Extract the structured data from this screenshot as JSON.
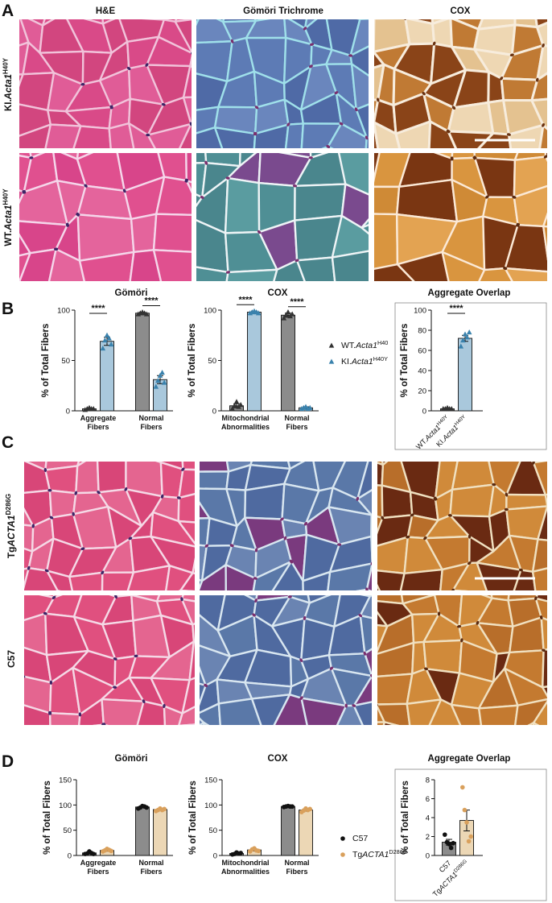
{
  "panel_labels": [
    "A",
    "B",
    "C",
    "D"
  ],
  "column_headers": [
    "H&E",
    "Gömöri Trichrome",
    "COX"
  ],
  "row_labels_a": [
    [
      "KI.",
      "Acta1",
      "H40Y"
    ],
    [
      "WT.",
      "Acta1",
      "H40Y"
    ]
  ],
  "row_labels_c": [
    [
      "Tg",
      "ACTA1",
      "D286G"
    ],
    [
      "C57"
    ]
  ],
  "chart_data": [
    {
      "type": "grouped_bar",
      "title": "Gömöri",
      "ylabel": "% of Total Fibers",
      "categories": [
        [
          "Aggregate",
          "Fibers"
        ],
        [
          "Normal",
          "Fibers"
        ]
      ],
      "ylim": [
        0,
        100
      ],
      "yticks": [
        0,
        50,
        100
      ],
      "marker": "triangle",
      "annotations": [
        {
          "text": "****",
          "category": 0
        },
        {
          "text": "****",
          "category": 1
        }
      ],
      "series": [
        {
          "color": "#8c8c8c",
          "point_color": "#333333",
          "values": [
            2,
            97
          ],
          "errors": [
            0.5,
            1
          ],
          "points": [
            [
              1,
              2,
              3,
              2,
              2
            ],
            [
              96,
              97,
              98,
              97,
              96
            ]
          ]
        },
        {
          "color": "#a9c8dc",
          "point_color": "#3a82ad",
          "values": [
            69,
            31
          ],
          "errors": [
            4,
            4
          ],
          "points": [
            [
              62,
              70,
              75,
              72,
              66
            ],
            [
              24,
              30,
              35,
              38,
              28
            ]
          ]
        }
      ]
    },
    {
      "type": "grouped_bar",
      "title": "COX",
      "ylabel": "% of Total Fibers",
      "categories": [
        [
          "Mitochondrial",
          "Abnormalities"
        ],
        [
          "Normal",
          "Fibers"
        ]
      ],
      "ylim": [
        0,
        100
      ],
      "yticks": [
        0,
        50,
        100
      ],
      "marker": "triangle",
      "legend": true,
      "annotations": [
        {
          "text": "****",
          "category": 0
        },
        {
          "text": "****",
          "category": 1
        }
      ],
      "series": [
        {
          "name": [
            "WT.",
            "Acta1",
            "H40"
          ],
          "color": "#8c8c8c",
          "point_color": "#333333",
          "values": [
            5,
            95
          ],
          "errors": [
            2,
            2
          ],
          "points": [
            [
              2,
              5,
              9,
              4,
              6
            ],
            [
              92,
              95,
              98,
              94,
              96
            ]
          ]
        },
        {
          "name": [
            "KI.",
            "Acta1",
            "H40Y"
          ],
          "color": "#a9c8dc",
          "point_color": "#3a82ad",
          "values": [
            98,
            3
          ],
          "errors": [
            1,
            1
          ],
          "points": [
            [
              97,
              98,
              99,
              98,
              97
            ],
            [
              2,
              3,
              4,
              2,
              3
            ]
          ]
        }
      ]
    },
    {
      "type": "bar",
      "title": "Aggregate Overlap",
      "ylabel": "% of Total Fibers",
      "categories": [
        [
          "WT.",
          "Acta1",
          "H40Y"
        ],
        [
          "KI.",
          "Acta1",
          "H40Y"
        ]
      ],
      "ylim": [
        0,
        100
      ],
      "yticks": [
        0,
        20,
        40,
        60,
        80,
        100
      ],
      "marker": "triangle",
      "colors": [
        "#8c8c8c",
        "#a9c8dc"
      ],
      "point_colors": [
        "#333333",
        "#3a82ad"
      ],
      "values": [
        2,
        72
      ],
      "errors": [
        0.5,
        3
      ],
      "points": [
        [
          2,
          2,
          3,
          2,
          2
        ],
        [
          64,
          70,
          76,
          73,
          78
        ]
      ],
      "annotations": [
        {
          "text": "****"
        }
      ]
    },
    {
      "type": "grouped_bar",
      "title": "Gömöri",
      "ylabel": "% of Total Fibers",
      "categories": [
        [
          "Aggregate",
          "Fibers"
        ],
        [
          "Normal",
          "Fibers"
        ]
      ],
      "ylim": [
        0,
        150
      ],
      "yticks": [
        0,
        50,
        100,
        150
      ],
      "marker": "circle",
      "series": [
        {
          "color": "#8c8c8c",
          "point_color": "#111111",
          "values": [
            5,
            96
          ],
          "errors": [
            1.5,
            1.5
          ],
          "points": [
            [
              3,
              4,
              8,
              5,
              3
            ],
            [
              93,
              95,
              98,
              97,
              95
            ]
          ]
        },
        {
          "color": "#ecd7b5",
          "point_color": "#d9a05c",
          "values": [
            10,
            91
          ],
          "errors": [
            1.5,
            1.5
          ],
          "points": [
            [
              8,
              10,
              13,
              11,
              9
            ],
            [
              88,
              90,
              93,
              90,
              92
            ]
          ]
        }
      ]
    },
    {
      "type": "grouped_bar",
      "title": "COX",
      "ylabel": "% of Total Fibers",
      "categories": [
        [
          "Mitochondrial",
          "Abnormalities"
        ],
        [
          "Normal",
          "Fibers"
        ]
      ],
      "ylim": [
        0,
        150
      ],
      "yticks": [
        0,
        50,
        100,
        150
      ],
      "marker": "circle",
      "legend": true,
      "series": [
        {
          "name": [
            "C57"
          ],
          "color": "#8c8c8c",
          "point_color": "#111111",
          "values": [
            4,
            97
          ],
          "errors": [
            1,
            1
          ],
          "points": [
            [
              2,
              3,
              6,
              4,
              5
            ],
            [
              96,
              97,
              98,
              97,
              97
            ]
          ]
        },
        {
          "name": [
            "Tg",
            "ACTA1",
            "D286G"
          ],
          "color": "#ecd7b5",
          "point_color": "#d9a05c",
          "values": [
            11,
            90
          ],
          "errors": [
            2,
            2
          ],
          "points": [
            [
              8,
              12,
              14,
              10,
              9
            ],
            [
              86,
              89,
              93,
              90,
              92
            ]
          ]
        }
      ]
    },
    {
      "type": "bar",
      "title": "Aggregate Overlap",
      "ylabel": "% of Total Fibers",
      "categories": [
        [
          "C57"
        ],
        [
          "Tg",
          "ACTA1",
          "D286G"
        ]
      ],
      "ylim": [
        0,
        8
      ],
      "yticks": [
        0,
        2,
        4,
        6,
        8
      ],
      "marker": "circle",
      "colors": [
        "#8c8c8c",
        "#ecd7b5"
      ],
      "point_colors": [
        "#111111",
        "#d9a05c"
      ],
      "values": [
        1.4,
        3.7
      ],
      "errors": [
        0.3,
        1.1
      ],
      "points": [
        [
          2.2,
          1.4,
          1.2,
          0.8,
          1.3
        ],
        [
          7.2,
          4.8,
          3.5,
          1.5,
          2.0
        ]
      ]
    }
  ]
}
